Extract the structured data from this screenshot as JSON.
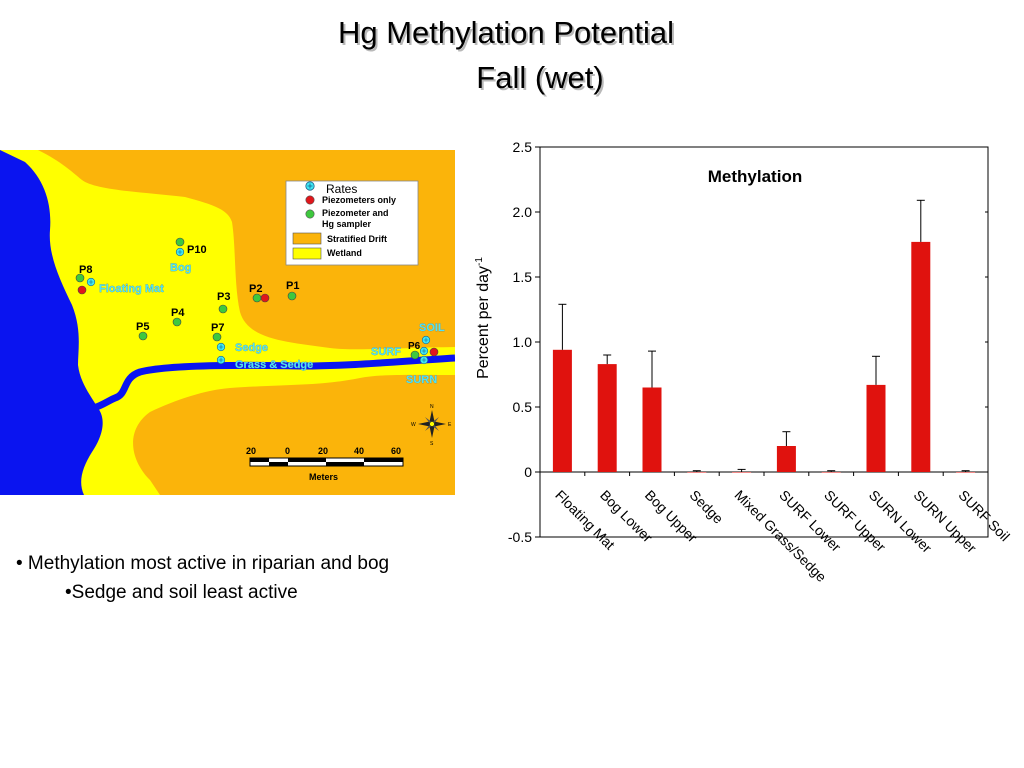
{
  "slide": {
    "title_line1": "Hg Methylation Potential",
    "title_line2": "Fall (wet)",
    "bullets": [
      "• Methylation most active in riparian and bog",
      "•Sedge and soil least active"
    ]
  },
  "map": {
    "legend": {
      "rates": "Rates",
      "piezometers_only": "Piezometers only",
      "piezometer_hg_line1": "Piezometer and",
      "piezometer_hg_line2": "Hg sampler",
      "stratified_drift": "Stratified Drift",
      "wetland": "Wetland"
    },
    "site_labels": {
      "p10": "P10",
      "bog": "Bog",
      "p8": "P8",
      "floating_mat": "Floating Mat",
      "p2": "P2",
      "p1": "P1",
      "p3": "P3",
      "p4": "P4",
      "p5": "P5",
      "p7": "P7",
      "sedge": "Sedge",
      "grass_sedge": "Grass & Sedge",
      "soil": "SOIL",
      "surf": "SURF",
      "p6": "P6",
      "surn": "SURN"
    },
    "scale": {
      "ticks": [
        "20",
        "0",
        "20",
        "40",
        "60"
      ],
      "unit": "Meters"
    },
    "compass": {
      "n": "N",
      "s": "S",
      "e": "E",
      "w": "W"
    },
    "colors": {
      "water": "#0a14f0",
      "wetland": "#ffff00",
      "stratified_drift": "#fbb40a",
      "rates_marker": "#3ee8f5",
      "piezometer_only": "#e0161b",
      "piezometer_hg": "#3ec83e"
    }
  },
  "chart_data": {
    "type": "bar",
    "title": "Methylation",
    "ylabel": "Percent per day",
    "ylabel_sup": "-1",
    "ylim": [
      -0.5,
      2.5
    ],
    "yticks": [
      -0.5,
      0,
      0.5,
      1.0,
      1.5,
      2.0,
      2.5
    ],
    "ytick_labels": [
      "-0.5",
      "0",
      "0.5",
      "1.0",
      "1.5",
      "2.0",
      "2.5"
    ],
    "categories": [
      "Floating Mat",
      "Bog Lower",
      "Bog Upper",
      "Sedge",
      "Mixed Grass/Sedge",
      "SURF Lower",
      "SURF Upper",
      "SURN Lower",
      "SURN Upper",
      "SURF Soil"
    ],
    "values": [
      0.94,
      0.83,
      0.65,
      0.0,
      0.0,
      0.2,
      0.0,
      0.67,
      1.77,
      0.0
    ],
    "errors": [
      0.35,
      0.07,
      0.28,
      0.01,
      0.02,
      0.11,
      0.01,
      0.22,
      0.32,
      0.01
    ],
    "bar_color": "#e0120e",
    "grid": false
  }
}
